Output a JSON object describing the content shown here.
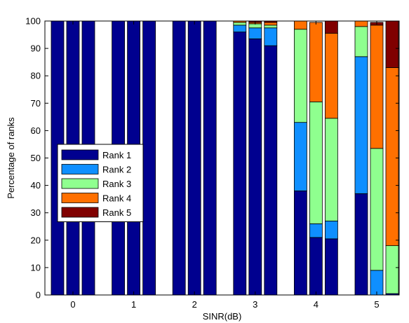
{
  "chart_data": {
    "type": "bar",
    "stacked": true,
    "xlabel": "SINR(dB)",
    "ylabel": "Percentage of ranks",
    "ylim": [
      0,
      100
    ],
    "yticks": [
      0,
      10,
      20,
      30,
      40,
      50,
      60,
      70,
      80,
      90,
      100
    ],
    "grid": false,
    "legend_position": "center-left",
    "categories": [
      "0",
      "1",
      "2",
      "3",
      "4",
      "5"
    ],
    "bars_per_category": 3,
    "series": [
      {
        "name": "Rank 1",
        "color": "#00008f",
        "values": [
          [
            100,
            100,
            100
          ],
          [
            100,
            100,
            100
          ],
          [
            100,
            100,
            100
          ],
          [
            96,
            93.5,
            91
          ],
          [
            38,
            21,
            20.5
          ],
          [
            37,
            0,
            0.5
          ]
        ]
      },
      {
        "name": "Rank 2",
        "color": "#0f8fff",
        "values": [
          [
            0,
            0,
            0
          ],
          [
            0,
            0,
            0
          ],
          [
            0,
            0,
            0
          ],
          [
            2.5,
            4,
            6.5
          ],
          [
            25,
            5,
            6.5
          ],
          [
            50,
            9,
            0
          ]
        ]
      },
      {
        "name": "Rank 3",
        "color": "#8fff8f",
        "values": [
          [
            0,
            0,
            0
          ],
          [
            0,
            0,
            0
          ],
          [
            0,
            0,
            0
          ],
          [
            1,
            1.5,
            1
          ],
          [
            34,
            44.5,
            37.5
          ],
          [
            11,
            44.5,
            17.5
          ]
        ]
      },
      {
        "name": "Rank 4",
        "color": "#ff7000",
        "values": [
          [
            0,
            0,
            0
          ],
          [
            0,
            0,
            0
          ],
          [
            0,
            0,
            0
          ],
          [
            0.5,
            0.5,
            1
          ],
          [
            3,
            29,
            31
          ],
          [
            2,
            45,
            65
          ]
        ]
      },
      {
        "name": "Rank 5",
        "color": "#800000",
        "values": [
          [
            0,
            0,
            0
          ],
          [
            0,
            0,
            0
          ],
          [
            0,
            0,
            0
          ],
          [
            0,
            0.5,
            0.5
          ],
          [
            0,
            0,
            4.5
          ],
          [
            0,
            1,
            17
          ]
        ]
      }
    ]
  }
}
